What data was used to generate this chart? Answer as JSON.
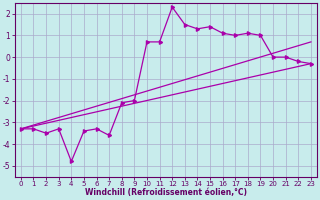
{
  "xlabel": "Windchill (Refroidissement éolien,°C)",
  "bg_color": "#c8ecec",
  "grid_color": "#aaaacc",
  "line_color": "#aa00aa",
  "spine_color": "#660066",
  "x_data": [
    0,
    1,
    2,
    3,
    4,
    5,
    6,
    7,
    8,
    9,
    10,
    11,
    12,
    13,
    14,
    15,
    16,
    17,
    18,
    19,
    20,
    21,
    22,
    23
  ],
  "y_scatter": [
    -3.3,
    -3.3,
    -3.5,
    -3.3,
    -4.8,
    -3.4,
    -3.3,
    -3.6,
    -2.1,
    -2.0,
    0.7,
    0.7,
    2.3,
    1.5,
    1.3,
    1.4,
    1.1,
    1.0,
    1.1,
    1.0,
    0.0,
    0.0,
    -0.2,
    -0.3
  ],
  "trend1_x": [
    0,
    23
  ],
  "trend1_y": [
    -3.3,
    -0.3
  ],
  "trend2_x": [
    0,
    23
  ],
  "trend2_y": [
    -3.3,
    0.7
  ],
  "xlim": [
    -0.5,
    23.5
  ],
  "ylim": [
    -5.5,
    2.5
  ],
  "yticks": [
    -5,
    -4,
    -3,
    -2,
    -1,
    0,
    1,
    2
  ],
  "xticks": [
    0,
    1,
    2,
    3,
    4,
    5,
    6,
    7,
    8,
    9,
    10,
    11,
    12,
    13,
    14,
    15,
    16,
    17,
    18,
    19,
    20,
    21,
    22,
    23
  ],
  "tick_fontsize": 5,
  "xlabel_fontsize": 5.5
}
